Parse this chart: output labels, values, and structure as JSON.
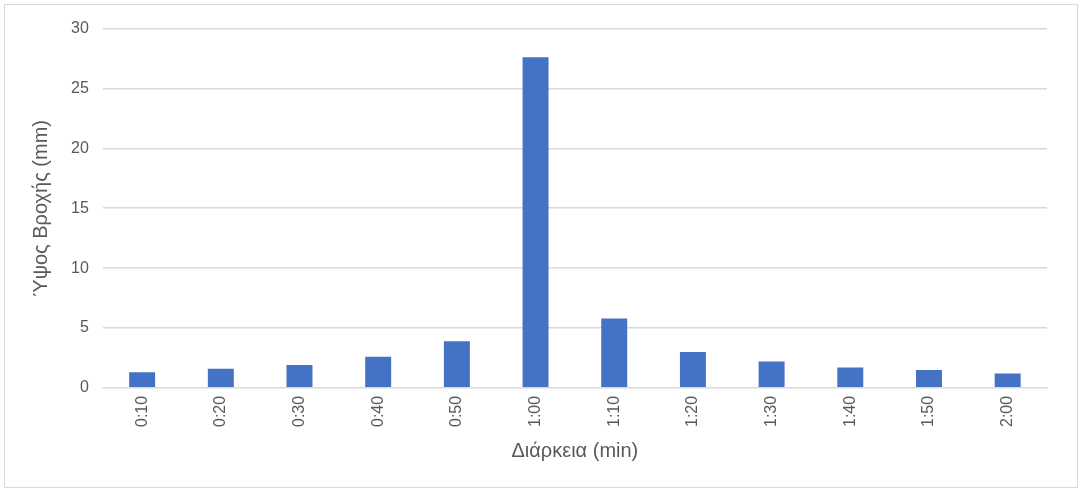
{
  "chart_data": {
    "type": "bar",
    "xlabel": "Διάρκεια (min)",
    "ylabel": "Ύψος Βροχής (mm)",
    "categories": [
      "0:10",
      "0:20",
      "0:30",
      "0:40",
      "0:50",
      "1:00",
      "1:10",
      "1:20",
      "1:30",
      "1:40",
      "1:50",
      "2:00"
    ],
    "values": [
      1.3,
      1.6,
      1.9,
      2.6,
      3.9,
      27.6,
      5.8,
      3.0,
      2.2,
      1.7,
      1.5,
      1.2
    ],
    "color": "#4472c4",
    "ylim": [
      0,
      30
    ],
    "yticks": [
      0,
      5,
      10,
      15,
      20,
      25,
      30
    ],
    "grid": "y",
    "legend": false
  }
}
